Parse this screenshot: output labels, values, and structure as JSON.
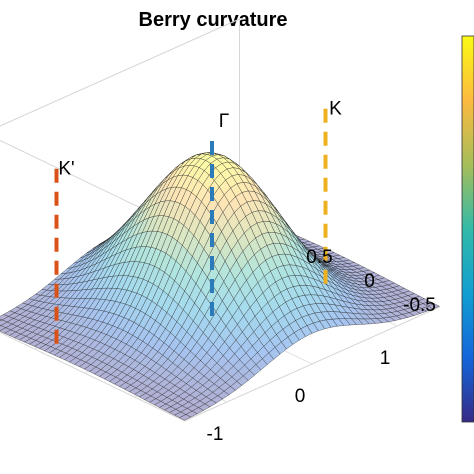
{
  "chart_data": {
    "type": "surface",
    "title": "Berry curvature",
    "surface": {
      "function": "gaussian",
      "peak_xy": [
        0,
        0
      ],
      "peak_value": 1.0,
      "sigma": 0.55,
      "x_range": [
        -1.5,
        1.5
      ],
      "y_range": [
        -1.0,
        1.0
      ],
      "grid": [
        40,
        40
      ]
    },
    "x_ticks": [
      "-1",
      "0",
      "1"
    ],
    "y_ticks": [
      "-0.5",
      "0",
      "0.5"
    ],
    "z_range": [
      0,
      1.2
    ],
    "points": [
      {
        "label": "K'",
        "x": -1.3,
        "y": 0.45,
        "color": "#d95319"
      },
      {
        "label": "Γ",
        "x": 0,
        "y": 0,
        "color": "#2b7bba"
      },
      {
        "label": "K",
        "x": 1.1,
        "y": -0.2,
        "color": "#edb120"
      }
    ],
    "colormap": "parula",
    "grid": true,
    "colorbar": "right"
  }
}
